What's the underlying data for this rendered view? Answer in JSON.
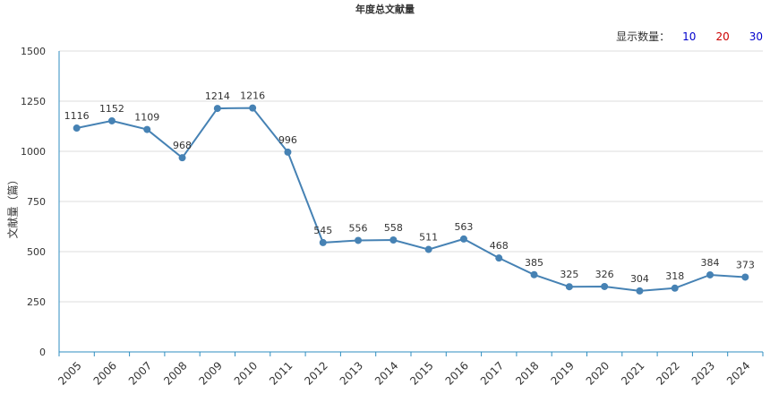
{
  "chart_data": {
    "type": "line",
    "title": "年度总文献量",
    "ylabel": "文献量（篇）",
    "xlabel": "",
    "ylim": [
      0,
      1500
    ],
    "yticks": [
      0,
      250,
      500,
      750,
      1000,
      1250,
      1500
    ],
    "grid": true,
    "line_color": "#4682b4",
    "categories": [
      "2005",
      "2006",
      "2007",
      "2008",
      "2009",
      "2010",
      "2011",
      "2012",
      "2013",
      "2014",
      "2015",
      "2016",
      "2017",
      "2018",
      "2019",
      "2020",
      "2021",
      "2022",
      "2023",
      "2024"
    ],
    "series": [
      {
        "values": [
          1116,
          1152,
          1109,
          968,
          1214,
          1216,
          996,
          545,
          556,
          558,
          511,
          563,
          468,
          385,
          325,
          326,
          304,
          318,
          384,
          373
        ]
      }
    ]
  },
  "display_count": {
    "label": "显示数量：",
    "options": [
      {
        "text": "10",
        "color": "#0000cc"
      },
      {
        "text": "20",
        "color": "#cc0000"
      },
      {
        "text": "30",
        "color": "#0000cc"
      }
    ]
  }
}
